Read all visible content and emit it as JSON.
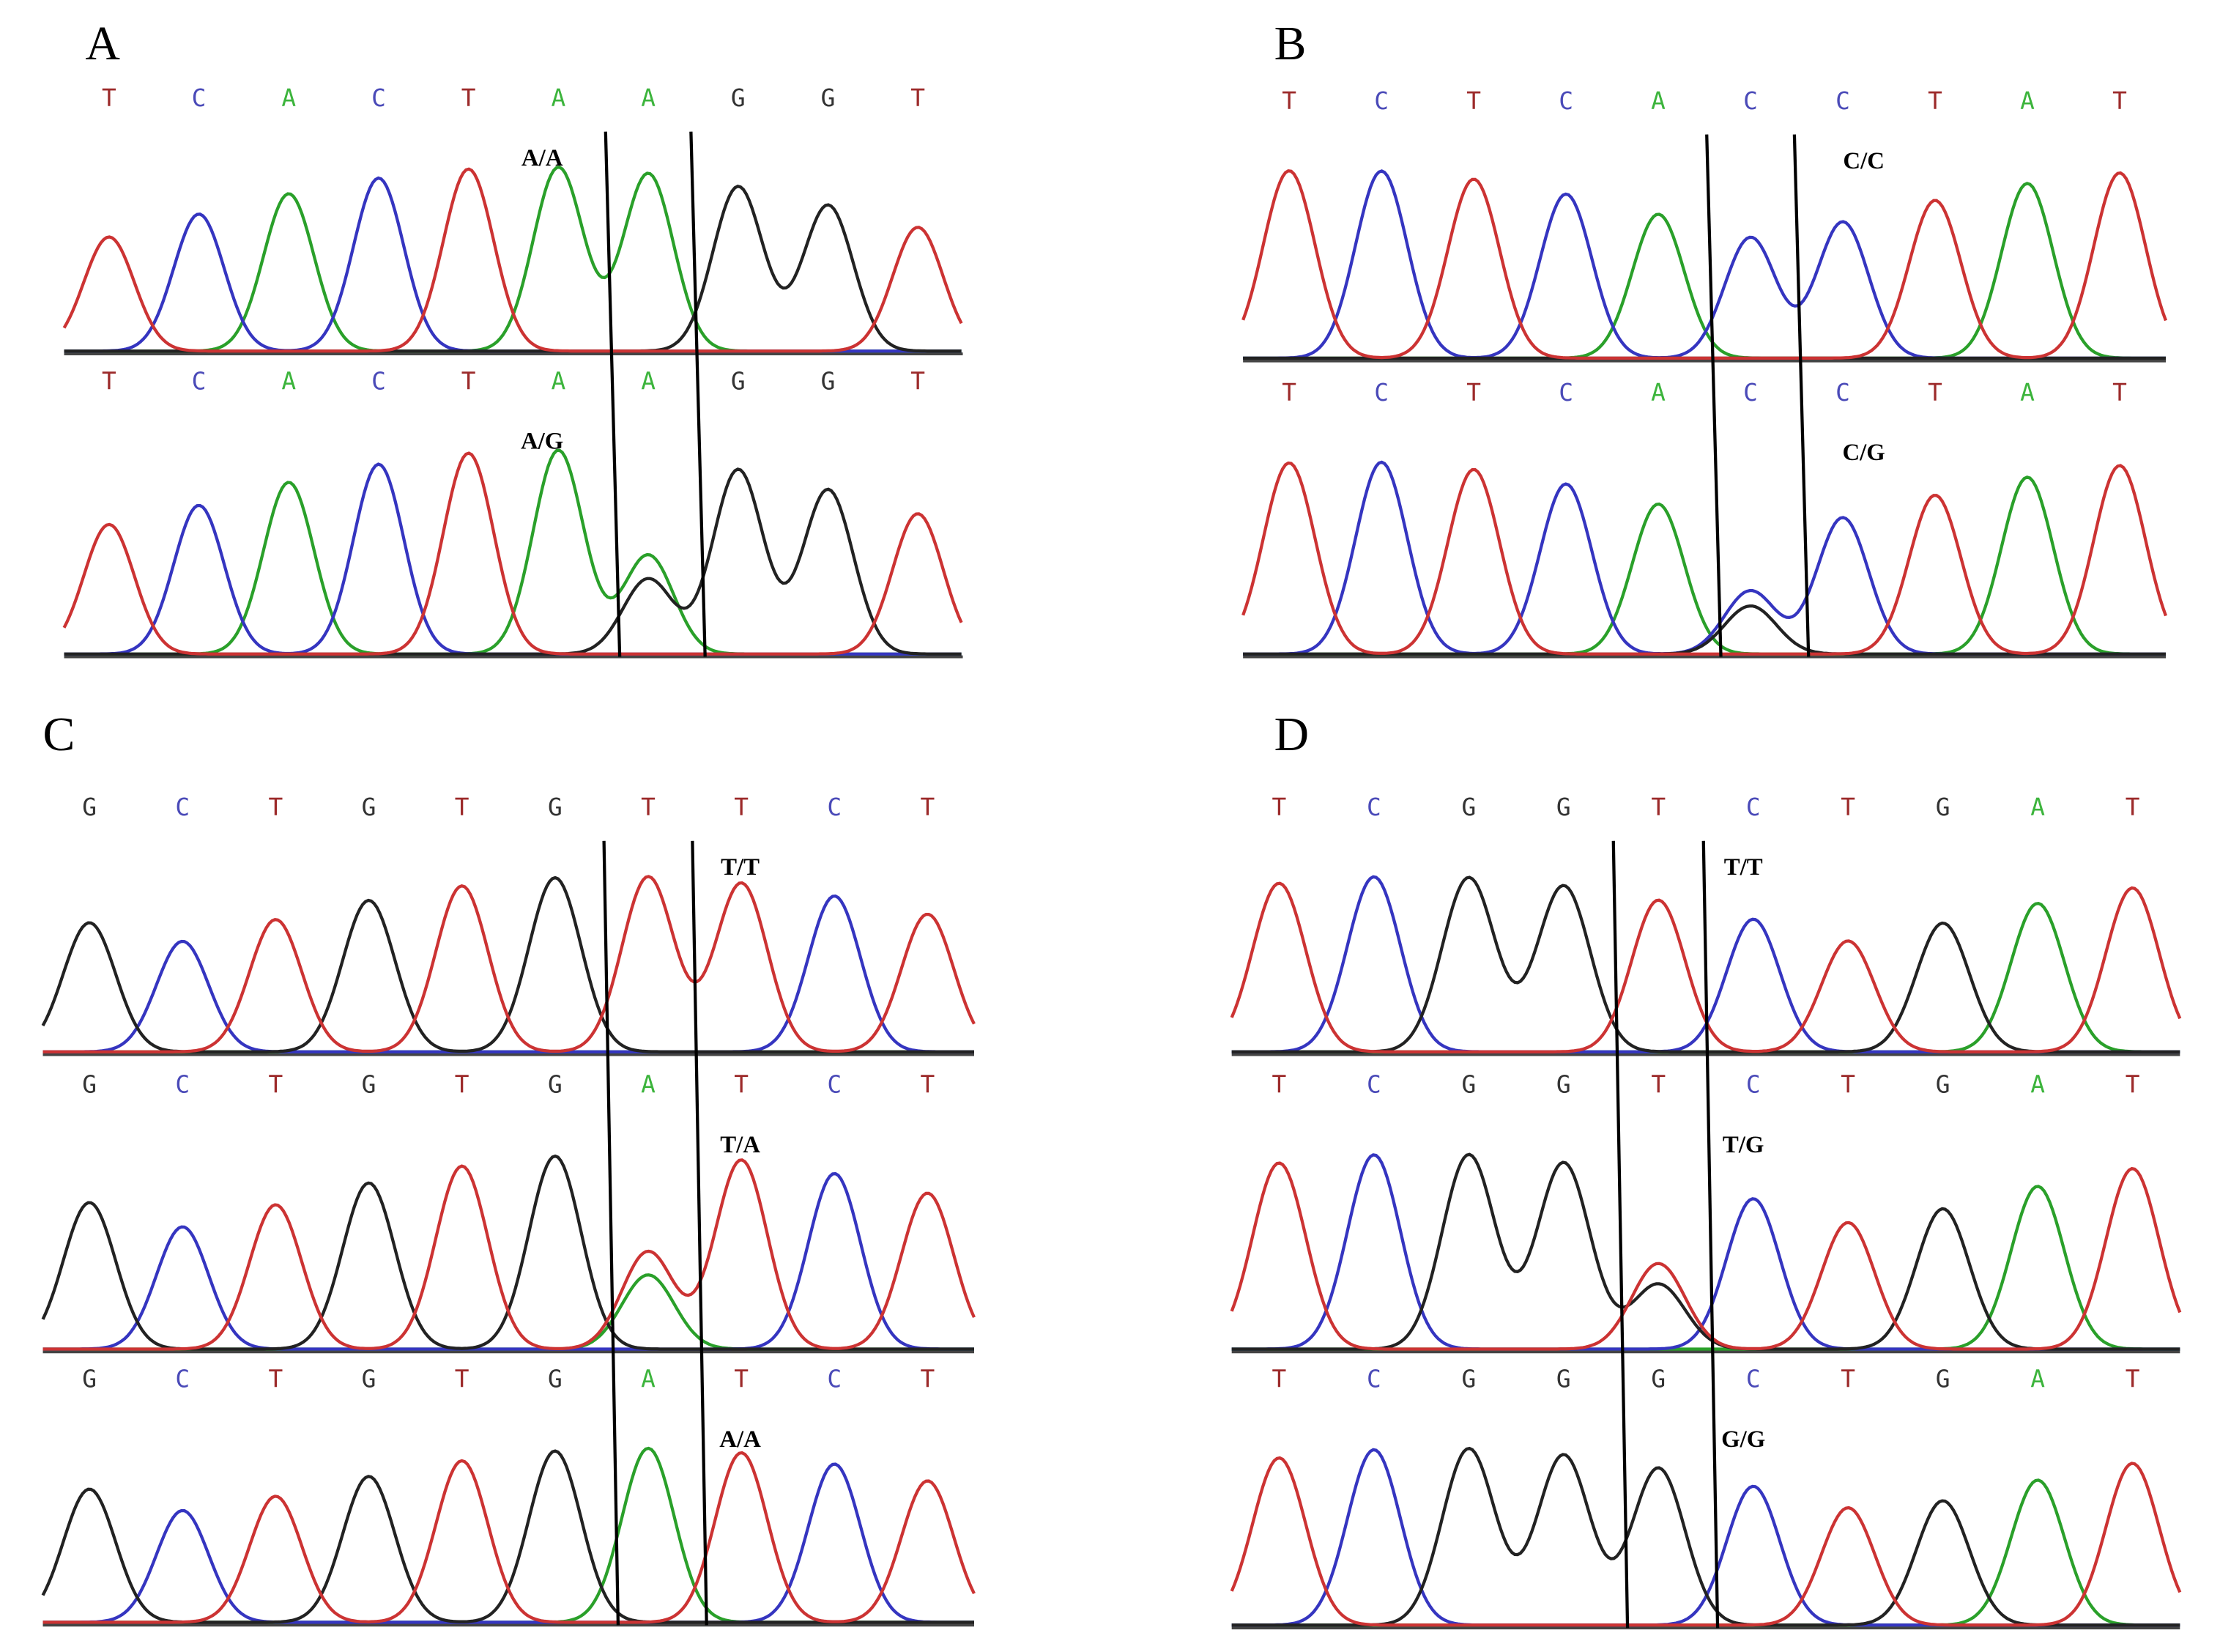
{
  "base_colors": {
    "A": "#2aa02a",
    "C": "#3535c0",
    "G": "#222222",
    "T": "#cc3333"
  },
  "letter_colors": {
    "A": "#3cb43c",
    "C": "#4a4ab8",
    "G": "#333333",
    "T": "#9c2a2a"
  },
  "panels": [
    {
      "label": "A",
      "tracks": [
        {
          "bases": [
            "T",
            "C",
            "A",
            "C",
            "T",
            "A",
            "A",
            "G",
            "G",
            "T"
          ],
          "genotype": "A/A"
        },
        {
          "bases": [
            "T",
            "C",
            "A",
            "C",
            "T",
            "A",
            "A",
            "G",
            "G",
            "T"
          ],
          "genotype": "A/G"
        }
      ]
    },
    {
      "label": "B",
      "tracks": [
        {
          "bases": [
            "T",
            "C",
            "T",
            "C",
            "A",
            "C",
            "C",
            "T",
            "A",
            "T"
          ],
          "genotype": "C/C"
        },
        {
          "bases": [
            "T",
            "C",
            "T",
            "C",
            "A",
            "C",
            "C",
            "T",
            "A",
            "T"
          ],
          "genotype": "C/G"
        }
      ]
    },
    {
      "label": "C",
      "tracks": [
        {
          "bases": [
            "G",
            "C",
            "T",
            "G",
            "T",
            "G",
            "T",
            "T",
            "C",
            "T"
          ],
          "genotype": "T/T"
        },
        {
          "bases": [
            "G",
            "C",
            "T",
            "G",
            "T",
            "G",
            "A",
            "T",
            "C",
            "T"
          ],
          "genotype": "T/A"
        },
        {
          "bases": [
            "G",
            "C",
            "T",
            "G",
            "T",
            "G",
            "A",
            "T",
            "C",
            "T"
          ],
          "genotype": "A/A"
        }
      ]
    },
    {
      "label": "D",
      "tracks": [
        {
          "bases": [
            "T",
            "C",
            "G",
            "G",
            "T",
            "C",
            "T",
            "G",
            "A",
            "T"
          ],
          "genotype": "T/T"
        },
        {
          "bases": [
            "T",
            "C",
            "G",
            "G",
            "T",
            "C",
            "T",
            "G",
            "A",
            "T"
          ],
          "genotype": "T/G"
        },
        {
          "bases": [
            "T",
            "C",
            "G",
            "G",
            "G",
            "C",
            "T",
            "G",
            "A",
            "T"
          ],
          "genotype": "G/G"
        }
      ]
    }
  ]
}
